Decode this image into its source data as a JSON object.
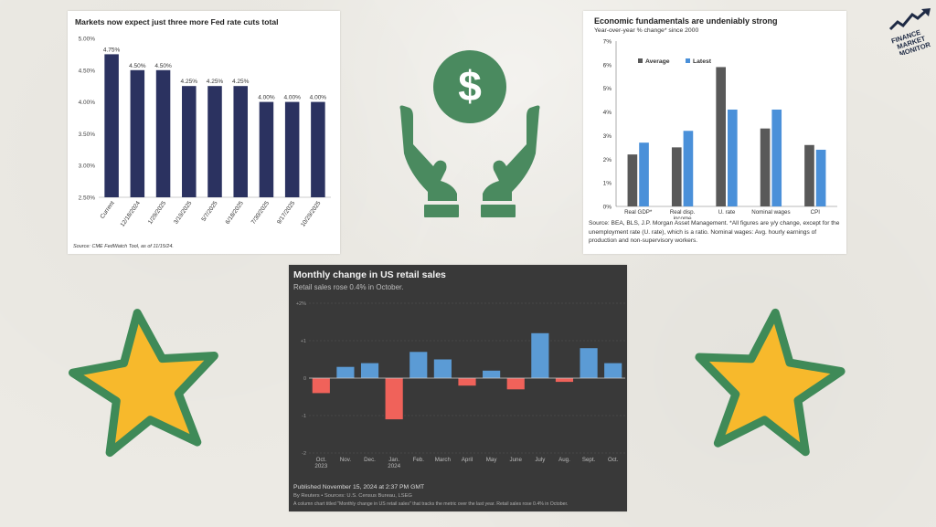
{
  "charts": {
    "fed": {
      "title": "Markets now expect just three more Fed rate cuts total",
      "source": "Source: CME FedWatch Tool, as of 11/15/24."
    },
    "econ": {
      "title": "Economic fundamentals are undeniably strong",
      "subtitle": "Year-over-year % change* since 2000",
      "source": "Source: BEA, BLS, J.P. Morgan Asset Management. *All figures are y/y change, except for the unemployment rate (U. rate), which is a ratio. Nominal wages: Avg. hourly earnings of production and non-supervisory workers."
    },
    "retail": {
      "title": "Monthly change in US retail sales",
      "subtitle": "Retail sales rose 0.4% in October.",
      "published": "Published November 15, 2024 at 2:37 PM GMT",
      "byline": "By Reuters • Sources: U.S. Census Bureau, LSEG",
      "caption": "A column chart titled \"Monthly change in US retail sales\" that tracks the metric over the last year. Retail sales rose 0.4% in October."
    }
  },
  "logo": {
    "lines": [
      "FINANCE",
      "MARKET",
      "MONITOR"
    ]
  },
  "icons": {
    "center": "money-hands-icon",
    "left": "star-icon",
    "right": "star-icon"
  },
  "colors": {
    "fed_bar": "#2b3260",
    "econ_average": "#595959",
    "econ_latest": "#4a90d9",
    "retail_pos": "#5b9bd5",
    "retail_neg": "#f0625a",
    "icon_green": "#4a8a5f",
    "star_fill": "#f7b92c",
    "star_outline": "#3f8a58"
  },
  "chart_data": [
    {
      "type": "bar",
      "title": "Markets now expect just three more Fed rate cuts total",
      "categories": [
        "Current",
        "12/18/2024",
        "1/29/2025",
        "3/19/2025",
        "5/7/2025",
        "6/18/2025",
        "7/30/2025",
        "9/17/2025",
        "10/29/2025"
      ],
      "values": [
        4.75,
        4.5,
        4.5,
        4.25,
        4.25,
        4.25,
        4.0,
        4.0,
        4.0
      ],
      "data_labels": [
        "4.75%",
        "4.50%",
        "4.50%",
        "4.25%",
        "4.25%",
        "4.25%",
        "4.00%",
        "4.00%",
        "4.00%"
      ],
      "ylim": [
        2.5,
        5.0
      ],
      "yticks": [
        "2.50%",
        "3.00%",
        "3.50%",
        "4.00%",
        "4.50%",
        "5.00%"
      ],
      "grid": false
    },
    {
      "type": "bar",
      "title": "Economic fundamentals are undeniably strong",
      "subtitle": "Year-over-year % change* since 2000",
      "categories": [
        "Real GDP*",
        "Real disp. income",
        "U. rate",
        "Nominal wages",
        "CPI"
      ],
      "series": [
        {
          "name": "Average",
          "values": [
            2.2,
            2.5,
            5.9,
            3.3,
            2.6
          ]
        },
        {
          "name": "Latest",
          "values": [
            2.7,
            3.2,
            4.1,
            4.1,
            2.4
          ]
        }
      ],
      "ylim": [
        0,
        7
      ],
      "yticks": [
        "0%",
        "1%",
        "2%",
        "3%",
        "4%",
        "5%",
        "6%",
        "7%"
      ],
      "legend": "top-left",
      "grid": false
    },
    {
      "type": "bar",
      "title": "Monthly change in US retail sales",
      "subtitle": "Retail sales rose 0.4% in October.",
      "categories": [
        [
          "Oct.",
          "2023"
        ],
        [
          "Nov."
        ],
        [
          "Dec."
        ],
        [
          "Jan.",
          "2024"
        ],
        [
          "Feb."
        ],
        [
          "March"
        ],
        [
          "April"
        ],
        [
          "May"
        ],
        [
          "June"
        ],
        [
          "July"
        ],
        [
          "Aug."
        ],
        [
          "Sept."
        ],
        [
          "Oct."
        ]
      ],
      "values": [
        -0.4,
        0.3,
        0.4,
        -1.1,
        0.7,
        0.5,
        -0.2,
        0.2,
        -0.3,
        1.2,
        -0.1,
        0.8,
        0.4
      ],
      "ylim": [
        -2,
        2
      ],
      "yticks": [
        "-2",
        "-1",
        "0",
        "+1",
        "+2%"
      ],
      "grid": true
    }
  ]
}
